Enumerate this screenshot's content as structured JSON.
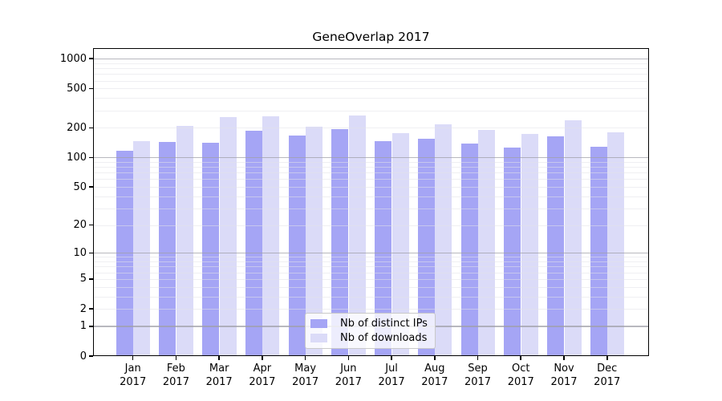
{
  "chart_data": {
    "type": "bar",
    "title": "GeneOverlap 2017",
    "categories": [
      "Jan",
      "Feb",
      "Mar",
      "Apr",
      "May",
      "Jun",
      "Jul",
      "Aug",
      "Sep",
      "Oct",
      "Nov",
      "Dec"
    ],
    "category_year": "2017",
    "series": [
      {
        "name": "Nb of distinct IPs",
        "color": "#a5a5f5",
        "values": [
          116,
          143,
          142,
          188,
          166,
          195,
          146,
          156,
          138,
          125,
          164,
          129
        ]
      },
      {
        "name": "Nb of downloads",
        "color": "#dbdbf8",
        "values": [
          148,
          210,
          257,
          262,
          207,
          265,
          177,
          219,
          190,
          175,
          239,
          179
        ]
      }
    ],
    "xlabel": "",
    "ylabel": "",
    "y_axis": {
      "scale": "log1p",
      "tick_labels": [
        "1000",
        "500",
        "200",
        "100",
        "50",
        "20",
        "10",
        "5",
        "2",
        "1",
        "0"
      ],
      "tick_values": [
        1000,
        500,
        200,
        100,
        50,
        20,
        10,
        5,
        2,
        1,
        0
      ],
      "major_grid_values": [
        1,
        10,
        100,
        1000
      ],
      "minor_grid_values": [
        2,
        3,
        4,
        5,
        6,
        7,
        8,
        9,
        20,
        30,
        40,
        50,
        60,
        70,
        80,
        90,
        200,
        300,
        400,
        500,
        600,
        700,
        800,
        900
      ],
      "ylim": [
        0,
        1220
      ]
    },
    "legend_position": "lower center",
    "grid": true
  },
  "colors": {
    "major_grid": "rgba(160,160,168,0.75)",
    "minor_grid": "rgba(225,225,232,0.55)",
    "spine": "#000000",
    "text": "#000000",
    "legend_border": "#c9c9c9",
    "legend_bg": "rgba(255,255,255,0.8)"
  }
}
